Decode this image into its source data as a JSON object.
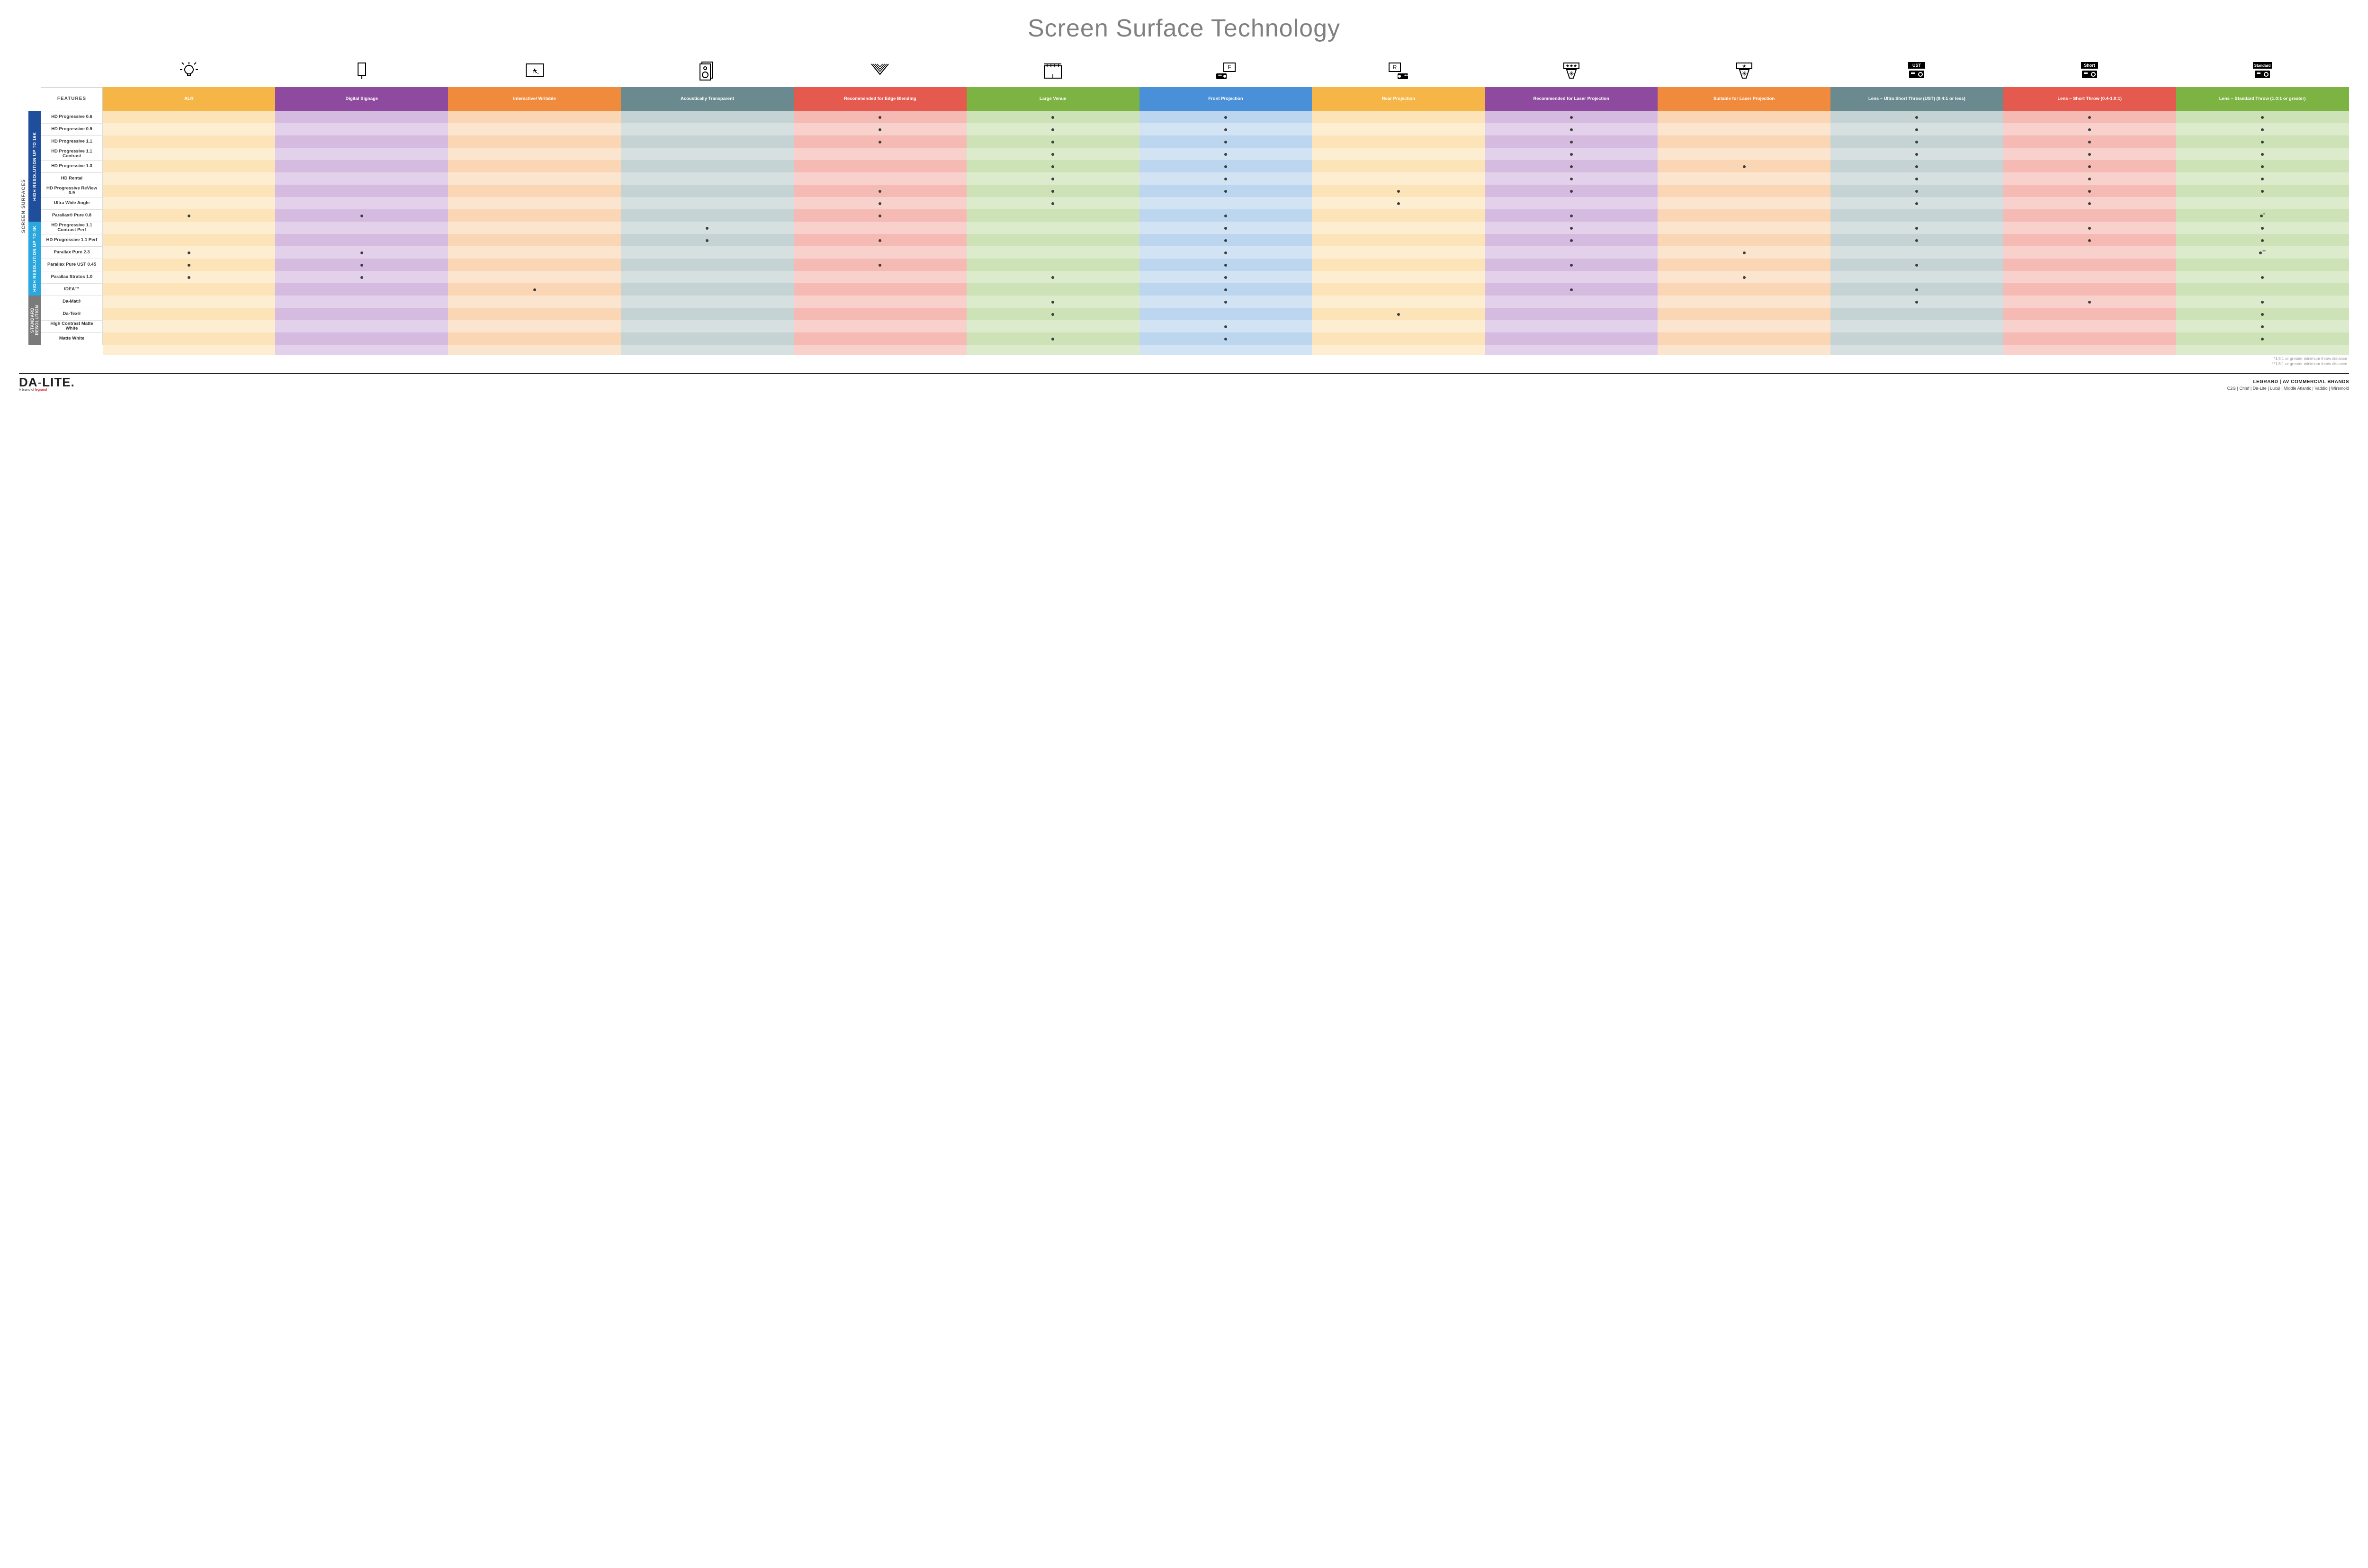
{
  "title": "Screen Surface Technology",
  "features_label": "FEATURES",
  "outer_vlabel": "SCREEN SURFACES",
  "colors": {
    "col_bg": [
      "#f5b547",
      "#8e4a9e",
      "#f08a3c",
      "#6b8a8f",
      "#e55a4f",
      "#7cb342",
      "#4a90d9",
      "#f5b547",
      "#8e4a9e",
      "#f08a3c",
      "#6b8a8f",
      "#e55a4f",
      "#7cb342"
    ],
    "col_light_a": [
      "#fce4b8",
      "#d5bbe0",
      "#fbd6b5",
      "#c6d3d4",
      "#f4bab3",
      "#cde2b6",
      "#bdd6ef",
      "#fce4b8",
      "#d5bbe0",
      "#fbd6b5",
      "#c6d3d4",
      "#f4bab3",
      "#cde2b6"
    ],
    "col_light_b": [
      "#fdeed2",
      "#e3d0ea",
      "#fce5cf",
      "#d7e0e1",
      "#f8d1cc",
      "#dcebcb",
      "#d2e3f4",
      "#fdeed2",
      "#e3d0ea",
      "#fce5cf",
      "#d7e0e1",
      "#f8d1cc",
      "#dcebcb"
    ],
    "group_bg": [
      "#1f4e9c",
      "#2aa7df",
      "#7a7a7a"
    ]
  },
  "columns": [
    "ALR",
    "Digital Signage",
    "Interactive/ Writable",
    "Acoustically Transparent",
    "Recommended for Edge Blending",
    "Large Venue",
    "Front Projection",
    "Rear Projection",
    "Recommended for Laser Projection",
    "Suitable for Laser Projection",
    "Lens – Ultra Short Throw (UST) (0.4:1 or less)",
    "Lens – Short Throw (0.4-1.0:1)",
    "Lens – Standard Throw (1.0:1 or greater)"
  ],
  "groups": [
    {
      "label": "HIGH RESOLUTION UP TO 16K",
      "rows": 9
    },
    {
      "label": "HIGH RESOLUTION UP TO 4K",
      "rows": 6
    },
    {
      "label": "STANDARD RESOLUTION",
      "rows": 4
    }
  ],
  "rows": [
    {
      "label": "HD Progressive 0.6",
      "dots": [
        "",
        "",
        "",
        "",
        "•",
        "•",
        "•",
        "",
        "•",
        "",
        "•",
        "•",
        "•"
      ]
    },
    {
      "label": "HD Progressive 0.9",
      "dots": [
        "",
        "",
        "",
        "",
        "•",
        "•",
        "•",
        "",
        "•",
        "",
        "•",
        "•",
        "•"
      ]
    },
    {
      "label": "HD Progressive 1.1",
      "dots": [
        "",
        "",
        "",
        "",
        "•",
        "•",
        "•",
        "",
        "•",
        "",
        "•",
        "•",
        "•"
      ]
    },
    {
      "label": "HD Progressive 1.1 Contrast",
      "dots": [
        "",
        "",
        "",
        "",
        "",
        "•",
        "•",
        "",
        "•",
        "",
        "•",
        "•",
        "•"
      ]
    },
    {
      "label": "HD Progressive 1.3",
      "dots": [
        "",
        "",
        "",
        "",
        "",
        "•",
        "•",
        "",
        "•",
        "•",
        "•",
        "•",
        "•"
      ]
    },
    {
      "label": "HD Rental",
      "dots": [
        "",
        "",
        "",
        "",
        "",
        "•",
        "•",
        "",
        "•",
        "",
        "•",
        "•",
        "•"
      ]
    },
    {
      "label": "HD Progressive ReView 0.9",
      "dots": [
        "",
        "",
        "",
        "",
        "•",
        "•",
        "•",
        "•",
        "•",
        "",
        "•",
        "•",
        "•"
      ]
    },
    {
      "label": "Ultra Wide Angle",
      "dots": [
        "",
        "",
        "",
        "",
        "•",
        "•",
        "",
        "•",
        "",
        "",
        "•",
        "•",
        ""
      ]
    },
    {
      "label": "Parallax® Pure 0.8",
      "dots": [
        "•",
        "•",
        "",
        "",
        "•",
        "",
        "•",
        "",
        "•",
        "",
        "",
        "",
        "•*"
      ]
    },
    {
      "label": "HD Progressive 1.1 Contrast Perf",
      "dots": [
        "",
        "",
        "",
        "•",
        "",
        "",
        "•",
        "",
        "•",
        "",
        "•",
        "•",
        "•"
      ]
    },
    {
      "label": "HD Progressive 1.1 Perf",
      "dots": [
        "",
        "",
        "",
        "•",
        "•",
        "",
        "•",
        "",
        "•",
        "",
        "•",
        "•",
        "•"
      ]
    },
    {
      "label": "Parallax Pure 2.3",
      "dots": [
        "•",
        "•",
        "",
        "",
        "",
        "",
        "•",
        "",
        "",
        "•",
        "",
        "",
        "•**"
      ]
    },
    {
      "label": "Parallax Pure UST 0.45",
      "dots": [
        "•",
        "•",
        "",
        "",
        "•",
        "",
        "•",
        "",
        "•",
        "",
        "•",
        "",
        ""
      ]
    },
    {
      "label": "Parallax Stratos 1.0",
      "dots": [
        "•",
        "•",
        "",
        "",
        "",
        "•",
        "•",
        "",
        "",
        "•",
        "",
        "",
        "•"
      ]
    },
    {
      "label": "IDEA™",
      "dots": [
        "",
        "",
        "•",
        "",
        "",
        "",
        "•",
        "",
        "•",
        "",
        "•",
        "",
        ""
      ]
    },
    {
      "label": "Da-Mat®",
      "dots": [
        "",
        "",
        "",
        "",
        "",
        "•",
        "•",
        "",
        "",
        "",
        "•",
        "•",
        "•"
      ]
    },
    {
      "label": "Da-Tex®",
      "dots": [
        "",
        "",
        "",
        "",
        "",
        "•",
        "",
        "•",
        "",
        "",
        "",
        "",
        "•"
      ]
    },
    {
      "label": "High Contrast Matte White",
      "dots": [
        "",
        "",
        "",
        "",
        "",
        "",
        "•",
        "",
        "",
        "",
        "",
        "",
        "•"
      ]
    },
    {
      "label": "Matte White",
      "dots": [
        "",
        "",
        "",
        "",
        "",
        "•",
        "•",
        "",
        "",
        "",
        "",
        "",
        "•"
      ]
    }
  ],
  "footnotes": [
    "*1.5:1 or greater minimum throw distance",
    "**1.8:1 or greater minimum throw distance"
  ],
  "footer": {
    "logo_main": "DA",
    "logo_dash": "-",
    "logo_tail": "LITE",
    "logo_dot": ".",
    "logo_sub_a": "A brand of ",
    "logo_sub_b": "legrand",
    "brands_l1": "LEGRAND | AV COMMERCIAL BRANDS",
    "brands_l2": "C2G  |  Chief  |  Da-Lite  |  Luxul  |  Middle Atlantic  |  Vaddio  |  Wiremold"
  },
  "icons": [
    "bulb",
    "signage",
    "touch",
    "speaker",
    "triangles",
    "venue",
    "front",
    "rear",
    "laser-rec",
    "laser-suit",
    "ust",
    "short",
    "standard"
  ]
}
